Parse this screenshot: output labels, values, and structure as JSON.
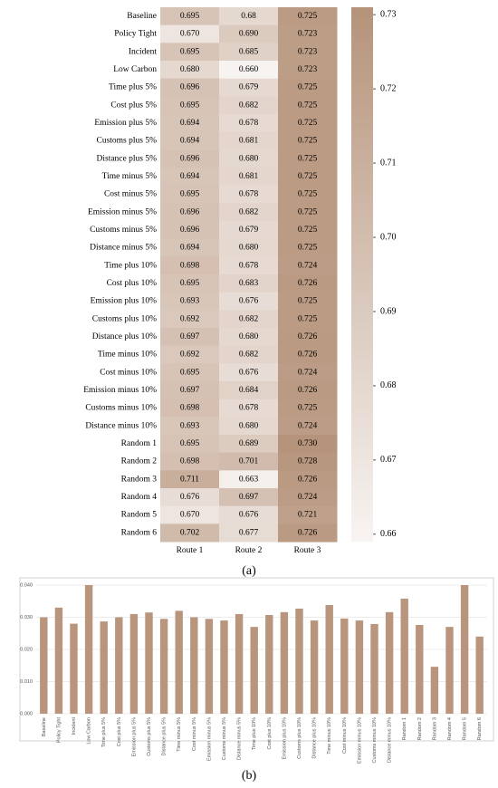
{
  "chart_data": [
    {
      "type": "heatmap",
      "label": "(a)",
      "rows": [
        "Baseline",
        "Policy Tight",
        "Incident",
        "Low Carbon",
        "Time plus 5%",
        "Cost plus 5%",
        "Emission plus 5%",
        "Customs plus 5%",
        "Distance plus 5%",
        "Time minus 5%",
        "Cost minus 5%",
        "Emission minus 5%",
        "Customs minus 5%",
        "Distance minus 5%",
        "Time plus 10%",
        "Cost plus 10%",
        "Emission plus 10%",
        "Customs plus 10%",
        "Distance plus 10%",
        "Time minus 10%",
        "Cost minus 10%",
        "Emission minus 10%",
        "Customs minus 10%",
        "Distance minus 10%",
        "Random 1",
        "Random 2",
        "Random 3",
        "Random 4",
        "Random 5",
        "Random 6"
      ],
      "columns": [
        "Route 1",
        "Route 2",
        "Route 3"
      ],
      "values": [
        [
          0.695,
          0.68,
          0.725
        ],
        [
          0.67,
          0.69,
          0.723
        ],
        [
          0.695,
          0.685,
          0.723
        ],
        [
          0.68,
          0.66,
          0.723
        ],
        [
          0.696,
          0.679,
          0.725
        ],
        [
          0.695,
          0.682,
          0.725
        ],
        [
          0.694,
          0.678,
          0.725
        ],
        [
          0.694,
          0.681,
          0.725
        ],
        [
          0.696,
          0.68,
          0.725
        ],
        [
          0.694,
          0.681,
          0.725
        ],
        [
          0.695,
          0.678,
          0.725
        ],
        [
          0.696,
          0.682,
          0.725
        ],
        [
          0.696,
          0.679,
          0.725
        ],
        [
          0.694,
          0.68,
          0.725
        ],
        [
          0.698,
          0.678,
          0.724
        ],
        [
          0.695,
          0.683,
          0.726
        ],
        [
          0.693,
          0.676,
          0.725
        ],
        [
          0.692,
          0.682,
          0.725
        ],
        [
          0.697,
          0.68,
          0.726
        ],
        [
          0.692,
          0.682,
          0.726
        ],
        [
          0.695,
          0.676,
          0.724
        ],
        [
          0.697,
          0.684,
          0.726
        ],
        [
          0.698,
          0.678,
          0.725
        ],
        [
          0.693,
          0.68,
          0.724
        ],
        [
          0.695,
          0.689,
          0.73
        ],
        [
          0.698,
          0.701,
          0.728
        ],
        [
          0.711,
          0.663,
          0.726
        ],
        [
          0.676,
          0.697,
          0.724
        ],
        [
          0.67,
          0.676,
          0.721
        ],
        [
          0.702,
          0.677,
          0.726
        ]
      ],
      "value_labels": [
        [
          "0.695",
          "0.68",
          "0.725"
        ],
        [
          "0.670",
          "0.690",
          "0.723"
        ],
        [
          "0.695",
          "0.685",
          "0.723"
        ],
        [
          "0.680",
          "0.660",
          "0.723"
        ],
        [
          "0.696",
          "0.679",
          "0.725"
        ],
        [
          "0.695",
          "0.682",
          "0.725"
        ],
        [
          "0.694",
          "0.678",
          "0.725"
        ],
        [
          "0.694",
          "0.681",
          "0.725"
        ],
        [
          "0.696",
          "0.680",
          "0.725"
        ],
        [
          "0.694",
          "0.681",
          "0.725"
        ],
        [
          "0.695",
          "0.678",
          "0.725"
        ],
        [
          "0.696",
          "0.682",
          "0.725"
        ],
        [
          "0.696",
          "0.679",
          "0.725"
        ],
        [
          "0.694",
          "0.680",
          "0.725"
        ],
        [
          "0.698",
          "0.678",
          "0.724"
        ],
        [
          "0.695",
          "0.683",
          "0.726"
        ],
        [
          "0.693",
          "0.676",
          "0.725"
        ],
        [
          "0.692",
          "0.682",
          "0.725"
        ],
        [
          "0.697",
          "0.680",
          "0.726"
        ],
        [
          "0.692",
          "0.682",
          "0.726"
        ],
        [
          "0.695",
          "0.676",
          "0.724"
        ],
        [
          "0.697",
          "0.684",
          "0.726"
        ],
        [
          "0.698",
          "0.678",
          "0.725"
        ],
        [
          "0.693",
          "0.680",
          "0.724"
        ],
        [
          "0.695",
          "0.689",
          "0.730"
        ],
        [
          "0.698",
          "0.701",
          "0.728"
        ],
        [
          "0.711",
          "0.663",
          "0.726"
        ],
        [
          "0.676",
          "0.697",
          "0.724"
        ],
        [
          "0.670",
          "0.676",
          "0.721"
        ],
        [
          "0.702",
          "0.677",
          "0.726"
        ]
      ],
      "colormap": [
        "#f8f4f2",
        "#b5937a"
      ],
      "zlim": [
        0.659,
        0.731
      ],
      "zticks": [
        0.66,
        0.67,
        0.68,
        0.69,
        {
          "value": 0.7,
          "label": "0.70"
        },
        0.71,
        0.72,
        0.73
      ]
    },
    {
      "type": "bar",
      "label": "(b)",
      "categories": [
        "Baseline",
        "Policy Tight",
        "Incident",
        "Low Carbon",
        "Time plus 5%",
        "Cost plus 5%",
        "Emission plus 5%",
        "Customs plus 5%",
        "Distance plus 5%",
        "Time minus 5%",
        "Cost minus 5%",
        "Emission minus 5%",
        "Customs minus 5%",
        "Distance minus 5%",
        "Time plus 10%",
        "Cost plus 10%",
        "Emission plus 10%",
        "Customs plus 10%",
        "Distance plus 10%",
        "Time minus 10%",
        "Cost minus 10%",
        "Emission minus 10%",
        "Customs minus 10%",
        "Distance minus 10%",
        "Random 1",
        "Random 2",
        "Random 3",
        "Random 4",
        "Random 5",
        "Random 6"
      ],
      "values": [
        0.03,
        0.033,
        0.028,
        0.04,
        0.0287,
        0.03,
        0.031,
        0.0315,
        0.0295,
        0.032,
        0.03,
        0.0295,
        0.029,
        0.031,
        0.027,
        0.0307,
        0.0316,
        0.0327,
        0.029,
        0.0338,
        0.0296,
        0.029,
        0.0279,
        0.0316,
        0.0358,
        0.0276,
        0.0146,
        0.027,
        0.04,
        0.024
      ],
      "color": "#b8957c",
      "ylim": [
        0,
        0.04
      ],
      "yticks": [
        {
          "value": 0,
          "label": "0.000"
        },
        {
          "value": 0.01,
          "label": "0.010"
        },
        {
          "value": 0.02,
          "label": "0.020"
        },
        {
          "value": 0.03,
          "label": "0.030"
        },
        {
          "value": 0.04,
          "label": "0.040"
        }
      ],
      "grid": true
    }
  ]
}
